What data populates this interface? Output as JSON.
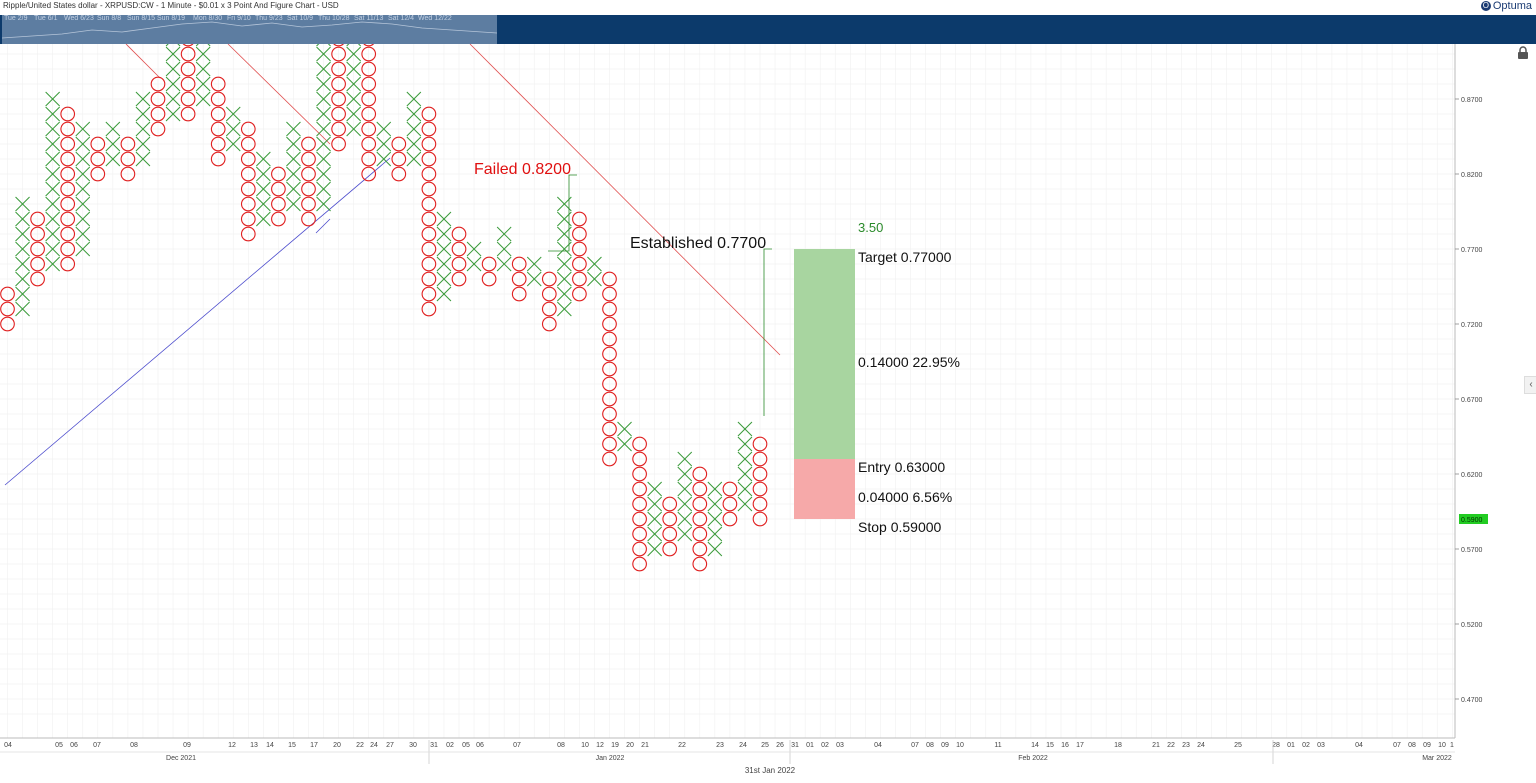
{
  "header": {
    "title": "Ripple/United States dollar - XRPUSD:CW - 1 Minute - $0.01 x 3 Point And Figure Chart - USD",
    "brand": "Optuma",
    "brand_icon": "optuma-logo-icon"
  },
  "navigator": {
    "labels": [
      "Tue 2/9",
      "Tue 6/1",
      "Wed 6/23",
      "Sun 8/8",
      "Sun 8/15",
      "Sun 8/19",
      "Mon 8/30",
      "Fri 9/10",
      "Thu 9/23",
      "Sat 10/9",
      "Thu 10/28",
      "Sat 11/13",
      "Sat 12/4",
      "Wed 12/22"
    ]
  },
  "footer_note": "31st Jan 2022",
  "colors": {
    "x_mark": "#3a9a3a",
    "o_mark": "#e02020",
    "trend_down": "#e05050",
    "trend_up": "#4a4acc",
    "target_zone": "#a8d5a0",
    "stop_zone": "#f6a9a9",
    "price_tag": "#22cc22",
    "nav_bg": "#0c3a6b"
  },
  "icons": {
    "lock": "lock-icon",
    "collapse": "chevron-left-icon"
  },
  "chart_data": {
    "type": "point-and-figure",
    "box_size": 0.01,
    "reversal": 3,
    "ylim": [
      0.46,
      0.92
    ],
    "y_ticks": [
      "0.8700",
      "0.8200",
      "0.7700",
      "0.7200",
      "0.6700",
      "0.6200",
      "0.5700",
      "0.5200",
      "0.4700"
    ],
    "y_tick_values": [
      0.87,
      0.82,
      0.77,
      0.72,
      0.67,
      0.62,
      0.57,
      0.52,
      0.47
    ],
    "last_price_label": "0.5900",
    "last_price_value": 0.59,
    "grid": true,
    "columns": [
      {
        "type": "O",
        "high": 0.74,
        "low": 0.72
      },
      {
        "type": "X",
        "low": 0.73,
        "high": 0.8
      },
      {
        "type": "O",
        "high": 0.79,
        "low": 0.75
      },
      {
        "type": "X",
        "low": 0.76,
        "high": 0.87
      },
      {
        "type": "O",
        "high": 0.86,
        "low": 0.76
      },
      {
        "type": "X",
        "low": 0.77,
        "high": 0.85
      },
      {
        "type": "O",
        "high": 0.84,
        "low": 0.82
      },
      {
        "type": "X",
        "low": 0.83,
        "high": 0.85
      },
      {
        "type": "O",
        "high": 0.84,
        "low": 0.82
      },
      {
        "type": "X",
        "low": 0.83,
        "high": 0.87
      },
      {
        "type": "O",
        "high": 0.88,
        "low": 0.85
      },
      {
        "type": "X",
        "low": 0.86,
        "high": 0.92
      },
      {
        "type": "O",
        "high": 0.92,
        "low": 0.86
      },
      {
        "type": "X",
        "low": 0.87,
        "high": 0.91
      },
      {
        "type": "O",
        "high": 0.88,
        "low": 0.83
      },
      {
        "type": "X",
        "low": 0.84,
        "high": 0.86
      },
      {
        "type": "O",
        "high": 0.85,
        "low": 0.78
      },
      {
        "type": "X",
        "low": 0.79,
        "high": 0.83
      },
      {
        "type": "O",
        "high": 0.82,
        "low": 0.79
      },
      {
        "type": "X",
        "low": 0.8,
        "high": 0.85
      },
      {
        "type": "O",
        "high": 0.84,
        "low": 0.79
      },
      {
        "type": "X",
        "low": 0.8,
        "high": 0.92
      },
      {
        "type": "O",
        "high": 0.92,
        "low": 0.84
      },
      {
        "type": "X",
        "low": 0.85,
        "high": 0.92
      },
      {
        "type": "O",
        "high": 0.92,
        "low": 0.82
      },
      {
        "type": "X",
        "low": 0.83,
        "high": 0.85
      },
      {
        "type": "O",
        "high": 0.84,
        "low": 0.82
      },
      {
        "type": "X",
        "low": 0.83,
        "high": 0.87
      },
      {
        "type": "O",
        "high": 0.86,
        "low": 0.73
      },
      {
        "type": "X",
        "low": 0.74,
        "high": 0.79
      },
      {
        "type": "O",
        "high": 0.78,
        "low": 0.75
      },
      {
        "type": "X",
        "low": 0.76,
        "high": 0.77
      },
      {
        "type": "O",
        "high": 0.76,
        "low": 0.75
      },
      {
        "type": "X",
        "low": 0.76,
        "high": 0.78
      },
      {
        "type": "O",
        "high": 0.76,
        "low": 0.74
      },
      {
        "type": "X",
        "low": 0.75,
        "high": 0.76
      },
      {
        "type": "O",
        "high": 0.75,
        "low": 0.72
      },
      {
        "type": "X",
        "low": 0.73,
        "high": 0.8
      },
      {
        "type": "O",
        "high": 0.79,
        "low": 0.74
      },
      {
        "type": "X",
        "low": 0.75,
        "high": 0.76
      },
      {
        "type": "O",
        "high": 0.75,
        "low": 0.63
      },
      {
        "type": "X",
        "low": 0.64,
        "high": 0.65
      },
      {
        "type": "O",
        "high": 0.64,
        "low": 0.56
      },
      {
        "type": "X",
        "low": 0.57,
        "high": 0.61
      },
      {
        "type": "O",
        "high": 0.6,
        "low": 0.57
      },
      {
        "type": "X",
        "low": 0.58,
        "high": 0.63
      },
      {
        "type": "O",
        "high": 0.62,
        "low": 0.56
      },
      {
        "type": "X",
        "low": 0.57,
        "high": 0.61
      },
      {
        "type": "O",
        "high": 0.61,
        "low": 0.59
      },
      {
        "type": "X",
        "low": 0.6,
        "high": 0.65
      },
      {
        "type": "O",
        "high": 0.64,
        "low": 0.59
      }
    ],
    "x_date_labels": [
      "04",
      "05",
      "06",
      "07",
      "08",
      "09",
      "12",
      "13",
      "14",
      "15",
      "17",
      "20",
      "22",
      "24",
      "27",
      "30",
      "31",
      "02",
      "05",
      "06",
      "07",
      "08",
      "10",
      "12",
      "19",
      "20",
      "21",
      "22",
      "23",
      "24",
      "25",
      "26",
      "31",
      "01",
      "02",
      "03",
      "04",
      "07",
      "08",
      "09",
      "10",
      "11",
      "14",
      "15",
      "16",
      "17",
      "18",
      "21",
      "22",
      "23",
      "24",
      "25",
      "28",
      "01",
      "02",
      "03",
      "04",
      "07",
      "08",
      "09",
      "10",
      "1"
    ],
    "x_month_labels": [
      "Dec 2021",
      "Jan 2022",
      "Feb 2022",
      "Mar 2022"
    ],
    "annotations": {
      "failed": "Failed 0.8200",
      "established": "Established 0.7700",
      "ratio": "3.50",
      "target": "Target   0.77000",
      "gain": "0.14000   22.95%",
      "entry": "Entry   0.63000",
      "risk": "0.04000   6.56%",
      "stop": "Stop   0.59000"
    },
    "trade": {
      "target": 0.77,
      "entry": 0.63,
      "stop": 0.59
    }
  }
}
